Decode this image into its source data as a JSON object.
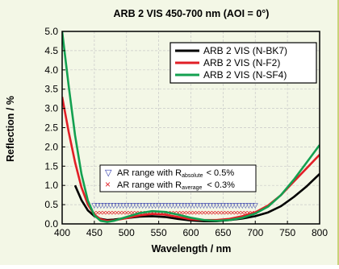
{
  "chart_data": {
    "type": "line",
    "title": "ARB 2 VIS 450-700 nm (AOI = 0°)",
    "xlabel": "Wavelength / nm",
    "ylabel": "Reflection / %",
    "xlim": [
      400,
      800
    ],
    "ylim": [
      0,
      5
    ],
    "xticks": [
      "400",
      "450",
      "500",
      "550",
      "600",
      "650",
      "700",
      "750",
      "800"
    ],
    "yticks": [
      "0.0",
      "0.5",
      "1.0",
      "1.5",
      "2.0",
      "2.5",
      "3.0",
      "3.5",
      "4.0",
      "4.5",
      "5.0"
    ],
    "grid": true,
    "legend_position": "top-right",
    "series": [
      {
        "name": "ARB 2 VIS (N-BK7)",
        "color": "#000000",
        "x": [
          420,
          430,
          440,
          450,
          460,
          470,
          480,
          500,
          520,
          540,
          560,
          580,
          600,
          620,
          640,
          660,
          680,
          700,
          720,
          740,
          760,
          780,
          800
        ],
        "y": [
          1.0,
          0.62,
          0.35,
          0.2,
          0.13,
          0.1,
          0.11,
          0.15,
          0.19,
          0.2,
          0.18,
          0.13,
          0.09,
          0.07,
          0.07,
          0.1,
          0.14,
          0.2,
          0.3,
          0.46,
          0.7,
          0.98,
          1.3
        ]
      },
      {
        "name": "ARB 2 VIS (N-F2)",
        "color": "#e11e26",
        "x": [
          400,
          410,
          420,
          430,
          440,
          450,
          460,
          470,
          480,
          500,
          520,
          540,
          560,
          580,
          600,
          620,
          640,
          660,
          680,
          700,
          720,
          740,
          760,
          780,
          800
        ],
        "y": [
          3.3,
          2.4,
          1.6,
          0.95,
          0.5,
          0.24,
          0.12,
          0.08,
          0.09,
          0.15,
          0.22,
          0.26,
          0.24,
          0.18,
          0.12,
          0.1,
          0.1,
          0.13,
          0.2,
          0.3,
          0.48,
          0.75,
          1.1,
          1.45,
          1.8
        ]
      },
      {
        "name": "ARB 2 VIS (N-SF4)",
        "color": "#13a050",
        "x": [
          400,
          410,
          420,
          430,
          440,
          450,
          460,
          470,
          480,
          500,
          520,
          540,
          560,
          580,
          600,
          620,
          640,
          660,
          680,
          700,
          720,
          740,
          760,
          780,
          800
        ],
        "y": [
          5.0,
          3.6,
          2.3,
          1.3,
          0.6,
          0.22,
          0.08,
          0.05,
          0.08,
          0.18,
          0.28,
          0.33,
          0.31,
          0.24,
          0.16,
          0.1,
          0.08,
          0.1,
          0.16,
          0.27,
          0.45,
          0.75,
          1.15,
          1.6,
          2.05
        ]
      }
    ],
    "ar_ranges": [
      {
        "symbol": "▽",
        "color": "#2a34a8",
        "label": "AR range with R",
        "subscript": "absolute",
        "limit": "< 0.5%",
        "y": 0.5,
        "x_start": 450,
        "x_end": 700
      },
      {
        "symbol": "×",
        "color": "#e11e26",
        "label": "AR range with R",
        "subscript": "average",
        "limit": "< 0.3%",
        "y": 0.3,
        "x_start": 450,
        "x_end": 700
      }
    ]
  }
}
